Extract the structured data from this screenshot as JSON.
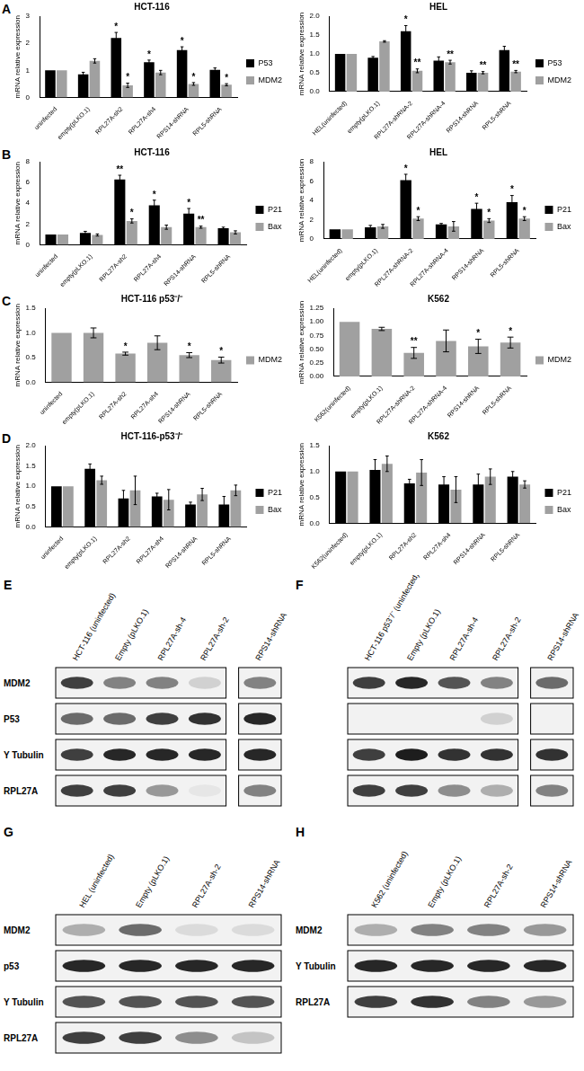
{
  "chart_data": [
    {
      "panel": "A",
      "type": "bar",
      "title": "HCT-116",
      "y_label": "mRNA relative expression",
      "categories": [
        "uninfected",
        "empty(pLKO.1)",
        "RPL27A-sh2",
        "RPL27A-sh4",
        "RPS14-shRNA",
        "RPL5-shRNA"
      ],
      "series": [
        {
          "name": "P53",
          "color": "#000000",
          "values": [
            1,
            0.85,
            2.2,
            1.3,
            1.75,
            1.02
          ],
          "errors": [
            0,
            0.08,
            0.2,
            0.08,
            0.12,
            0.07
          ],
          "annotations": [
            null,
            null,
            "*",
            "*",
            "*",
            null
          ]
        },
        {
          "name": "MDM2",
          "color": "#a0a0a0",
          "values": [
            1,
            1.35,
            0.45,
            0.92,
            0.5,
            0.47
          ],
          "errors": [
            0,
            0.08,
            0.08,
            0.08,
            0.05,
            0.04
          ],
          "annotations": [
            null,
            null,
            "*",
            null,
            "*",
            "*"
          ]
        }
      ],
      "ylim": [
        0,
        3
      ],
      "yticks": [
        0,
        1,
        2,
        3
      ],
      "grid": false,
      "legend": "right"
    },
    {
      "type": "bar",
      "title": "HEL",
      "y_label": "mRNA relative expression",
      "categories": [
        "HEL(uninfected)",
        "empty(pLKO.1)",
        "RPL27A-shRNA-2",
        "RPL27A-shRNA-4",
        "RPS14-shRNA",
        "RPL5-shRNA"
      ],
      "series": [
        {
          "name": "P53",
          "color": "#000000",
          "values": [
            1,
            0.9,
            1.6,
            0.82,
            0.5,
            1.1
          ],
          "errors": [
            0,
            0.03,
            0.15,
            0.1,
            0.05,
            0.1
          ],
          "annotations": [
            null,
            null,
            "*",
            null,
            null,
            null
          ]
        },
        {
          "name": "MDM2",
          "color": "#a0a0a0",
          "values": [
            1,
            1.33,
            0.55,
            0.78,
            0.5,
            0.53
          ],
          "errors": [
            0,
            0.02,
            0.05,
            0.05,
            0.03,
            0.03
          ],
          "annotations": [
            null,
            null,
            "**",
            "**",
            "**",
            "**"
          ]
        }
      ],
      "ylim": [
        0,
        2
      ],
      "yticks": [
        {
          "value": 0,
          "label": "0.0"
        },
        {
          "value": 0.5,
          "label": "0.5"
        },
        {
          "value": 1,
          "label": "1.0"
        },
        {
          "value": 1.5,
          "label": "1.5"
        },
        {
          "value": 2,
          "label": "2.0"
        }
      ],
      "grid": false,
      "legend": "right"
    },
    {
      "panel": "B",
      "type": "bar",
      "title": "HCT-116",
      "y_label": "mRNA relative expression",
      "categories": [
        "uninfected",
        "empty(pLKO.1)",
        "RPL27A-sh2",
        "RPL27A-sh4",
        "RPS14-shRNA",
        "RPL5-shRNA"
      ],
      "series": [
        {
          "name": "P21",
          "color": "#000000",
          "values": [
            1,
            1.15,
            6.3,
            3.8,
            3.0,
            1.6
          ],
          "errors": [
            0,
            0.15,
            0.4,
            0.5,
            0.5,
            0.1
          ],
          "annotations": [
            null,
            null,
            "**",
            "*",
            "*",
            null
          ]
        },
        {
          "name": "Bax",
          "color": "#a0a0a0",
          "values": [
            1,
            0.95,
            2.3,
            1.7,
            1.7,
            1.2
          ],
          "errors": [
            0,
            0.1,
            0.2,
            0.2,
            0.1,
            0.15
          ],
          "annotations": [
            null,
            null,
            "*",
            null,
            "**",
            null
          ]
        }
      ],
      "ylim": [
        0,
        8
      ],
      "yticks": [
        0,
        2,
        4,
        6,
        8
      ],
      "grid": false,
      "legend": "right"
    },
    {
      "type": "bar",
      "title": "HEL",
      "y_label": "mRNA relative expression",
      "categories": [
        "HEL(uninfected)",
        "empty(pLKO.1)",
        "RPL27A-shRNA-2",
        "RPL27A-shRNA-4",
        "RPS14-shRNA",
        "RPL5-shRNA"
      ],
      "series": [
        {
          "name": "P21",
          "color": "#000000",
          "values": [
            1,
            1.2,
            6.1,
            1.5,
            3.1,
            3.8
          ],
          "errors": [
            0,
            0.2,
            0.6,
            0.1,
            0.6,
            0.7
          ],
          "annotations": [
            null,
            null,
            "*",
            null,
            "*",
            "*"
          ]
        },
        {
          "name": "Bax",
          "color": "#a0a0a0",
          "values": [
            1,
            1.3,
            2.1,
            1.3,
            1.9,
            2.1
          ],
          "errors": [
            0,
            0.2,
            0.2,
            0.5,
            0.2,
            0.2
          ],
          "annotations": [
            null,
            null,
            "*",
            null,
            "*",
            "*"
          ]
        }
      ],
      "ylim": [
        0,
        8
      ],
      "yticks": [
        0,
        2,
        4,
        6,
        8
      ],
      "grid": false,
      "legend": "right"
    },
    {
      "panel": "C",
      "type": "bar",
      "title": "HCT-116 p53⁻/⁻",
      "y_label": "mRNA relative expression",
      "categories": [
        "uninfected",
        "empty(pLKO.1)",
        "RPL27A-sh2",
        "RPL27A-sh4",
        "RPS14-shRNA",
        "RPL5-shRNA"
      ],
      "series": [
        {
          "name": "MDM2",
          "color": "#a0a0a0",
          "values": [
            1,
            1.0,
            0.58,
            0.8,
            0.55,
            0.45
          ],
          "errors": [
            0,
            0.1,
            0.03,
            0.14,
            0.05,
            0.06
          ],
          "annotations": [
            null,
            null,
            "*",
            null,
            "*",
            "*"
          ]
        }
      ],
      "ylim": [
        0,
        1.5
      ],
      "yticks": [
        {
          "value": 0,
          "label": "0.0"
        },
        {
          "value": 0.5,
          "label": "0.5"
        },
        {
          "value": 1,
          "label": "1.0"
        },
        {
          "value": 1.5,
          "label": "1.5"
        }
      ],
      "grid": false,
      "legend": "right"
    },
    {
      "type": "bar",
      "title": "K562",
      "y_label": "mRNA relative expression",
      "categories": [
        "K562(uninfected)",
        "empty(pLKO.1)",
        "RPL27A-shRNA-2",
        "RPL27A-shRNA-4",
        "RPS14-shRNA",
        "RPL5-shRNA"
      ],
      "series": [
        {
          "name": "MDM2",
          "color": "#a0a0a0",
          "values": [
            1,
            0.87,
            0.43,
            0.65,
            0.55,
            0.62
          ],
          "errors": [
            0,
            0.03,
            0.1,
            0.2,
            0.13,
            0.1
          ],
          "annotations": [
            null,
            null,
            "**",
            null,
            "*",
            "*"
          ]
        }
      ],
      "ylim": [
        0,
        1.25
      ],
      "yticks": [
        {
          "value": 0,
          "label": "0.00"
        },
        {
          "value": 0.25,
          "label": "0.25"
        },
        {
          "value": 0.5,
          "label": "0.50"
        },
        {
          "value": 0.75,
          "label": "0.75"
        },
        {
          "value": 1,
          "label": "1.00"
        },
        {
          "value": 1.25,
          "label": "1.25"
        }
      ],
      "grid": false,
      "legend": "right"
    },
    {
      "panel": "D",
      "type": "bar",
      "title": "HCT-116-p53⁻/⁻",
      "y_label": "mRNA relative expression",
      "categories": [
        "uninfected",
        "empty(pLKO.1)",
        "RPL27A-sh2",
        "RPL27A-sh4",
        "RPS14-shRNA",
        "RPL5-shRNA"
      ],
      "series": [
        {
          "name": "P21",
          "color": "#000000",
          "values": [
            1,
            1.43,
            0.7,
            0.75,
            0.55,
            0.55
          ],
          "errors": [
            0,
            0.12,
            0.2,
            0.08,
            0.06,
            0.2
          ],
          "annotations": [
            null,
            null,
            null,
            null,
            null,
            null
          ]
        },
        {
          "name": "Bax",
          "color": "#a0a0a0",
          "values": [
            1,
            1.15,
            0.9,
            0.67,
            0.8,
            0.9
          ],
          "errors": [
            0,
            0.1,
            0.35,
            0.25,
            0.15,
            0.13
          ],
          "annotations": [
            null,
            null,
            null,
            null,
            null,
            null
          ]
        }
      ],
      "ylim": [
        0,
        2
      ],
      "yticks": [
        {
          "value": 0,
          "label": "0.0"
        },
        {
          "value": 0.5,
          "label": "0.5"
        },
        {
          "value": 1,
          "label": "1.0"
        },
        {
          "value": 1.5,
          "label": "1.5"
        },
        {
          "value": 2,
          "label": "2.0"
        }
      ],
      "grid": false,
      "legend": "right"
    },
    {
      "type": "bar",
      "title": "K562",
      "y_label": "mRNA relative expression",
      "categories": [
        "K562(uninfected)",
        "empty(pLKO.1)",
        "RPL27A-sh2",
        "RPL27A-sh4",
        "RPS14-shRNA",
        "RPL5-shRNA"
      ],
      "series": [
        {
          "name": "P21",
          "color": "#000000",
          "values": [
            1,
            1.03,
            0.77,
            0.75,
            0.75,
            0.9
          ],
          "errors": [
            0,
            0.2,
            0.08,
            0.15,
            0.2,
            0.1
          ],
          "annotations": [
            null,
            null,
            null,
            null,
            null,
            null
          ]
        },
        {
          "name": "Bax",
          "color": "#a0a0a0",
          "values": [
            1,
            1.15,
            0.98,
            0.65,
            0.9,
            0.75
          ],
          "errors": [
            0,
            0.15,
            0.25,
            0.25,
            0.15,
            0.07
          ],
          "annotations": [
            null,
            null,
            null,
            null,
            null,
            null
          ]
        }
      ],
      "ylim": [
        0,
        1.5
      ],
      "yticks": [
        {
          "value": 0,
          "label": "0.0"
        },
        {
          "value": 0.5,
          "label": "0.5"
        },
        {
          "value": 1,
          "label": "1.0"
        },
        {
          "value": 1.5,
          "label": "1.5"
        }
      ],
      "grid": false,
      "legend": "right"
    }
  ],
  "blots": [
    {
      "panel": "E",
      "lanes": [
        "HCT-116 (uninfected)",
        "Empty (pLKO.1)",
        "RPL27A-sh-4",
        "RPL27A-sh-2",
        "RPS14-shRNA"
      ],
      "separate_last": true,
      "rows": [
        {
          "label": "MDM2",
          "bands": [
            0.8,
            0.5,
            0.5,
            0.15,
            0.5
          ]
        },
        {
          "label": "P53",
          "bands": [
            0.6,
            0.6,
            0.8,
            0.85,
            0.9
          ]
        },
        {
          "label": "Y Tubulin",
          "bands": [
            0.8,
            0.9,
            0.9,
            0.9,
            0.9
          ]
        },
        {
          "label": "RPL27A",
          "bands": [
            0.8,
            0.8,
            0.4,
            0.05,
            0.5
          ]
        }
      ]
    },
    {
      "panel": "F",
      "lanes": [
        "HCT-116 p53⁻/⁻ (uninfected)",
        "Empty (pLKO.1)",
        "RPL27A-sh-4",
        "RPL27A-sh-2",
        "RPS14-shRNA"
      ],
      "separate_last": true,
      "rows": [
        {
          "label": null,
          "bands": [
            0.8,
            0.9,
            0.7,
            0.5,
            0.6
          ]
        },
        {
          "label": null,
          "bands": [
            0,
            0,
            0,
            0.15,
            0
          ]
        },
        {
          "label": null,
          "bands": [
            0.8,
            0.95,
            0.85,
            0.85,
            0.85
          ]
        },
        {
          "label": null,
          "bands": [
            0.8,
            0.8,
            0.45,
            0.3,
            0.5
          ]
        }
      ]
    },
    {
      "panel": "G",
      "lanes": [
        "HEL (uninfected)",
        "Empty (pLKO.1)",
        "RPL27A-sh-2",
        "RPS14-shRNA"
      ],
      "separate_last": false,
      "rows": [
        {
          "label": "MDM2",
          "bands": [
            0.3,
            0.6,
            0.1,
            0.1
          ]
        },
        {
          "label": "p53",
          "bands": [
            0.9,
            0.9,
            0.9,
            0.9
          ]
        },
        {
          "label": "Y Tubulin",
          "bands": [
            0.7,
            0.7,
            0.7,
            0.7
          ]
        },
        {
          "label": "RPL27A",
          "bands": [
            0.8,
            0.8,
            0.45,
            0.2
          ]
        }
      ]
    },
    {
      "panel": "H",
      "lanes": [
        "K562 (uninfected)",
        "Empty (pLKO.1)",
        "RPL27A-sh-2",
        "RPS14-shRNA"
      ],
      "separate_last": false,
      "rows": [
        {
          "label": "MDM2",
          "bands": [
            0.3,
            0.5,
            0.5,
            0.4
          ]
        },
        {
          "label": "Y Tubulin",
          "bands": [
            0.9,
            0.9,
            0.9,
            0.9
          ]
        },
        {
          "label": "RPL27A",
          "bands": [
            0.8,
            0.85,
            0.5,
            0.4
          ]
        }
      ]
    }
  ]
}
